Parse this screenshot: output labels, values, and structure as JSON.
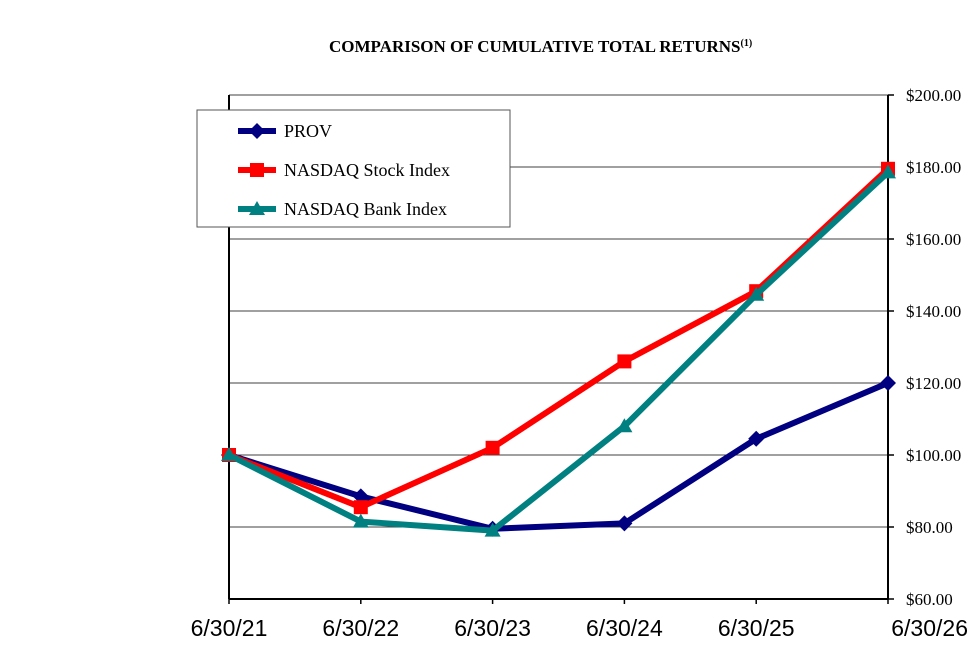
{
  "chart_data": {
    "type": "line",
    "title": "COMPARISON OF CUMULATIVE TOTAL RETURNS",
    "title_superscript": "(1)",
    "categories": [
      "6/30/21",
      "6/30/22",
      "6/30/23",
      "6/30/24",
      "6/30/25",
      "6/30/26"
    ],
    "ylim": [
      60,
      200
    ],
    "y_ticks": [
      60,
      80,
      100,
      120,
      140,
      160,
      180,
      200
    ],
    "y_tick_labels": [
      "$60.00",
      "$80.00",
      "$100.00",
      "$120.00",
      "$140.00",
      "$160.00",
      "$180.00",
      "$200.00"
    ],
    "y_axis_side": "right",
    "grid": "horizontal",
    "legend_position": "top-left",
    "series": [
      {
        "name": "PROV",
        "color": "#000080",
        "marker": "diamond",
        "values": [
          100.0,
          88.5,
          79.5,
          81.0,
          104.5,
          120.0
        ]
      },
      {
        "name": "NASDAQ Stock Index",
        "color": "#ff0000",
        "marker": "square",
        "values": [
          100.0,
          85.5,
          102.0,
          126.0,
          145.5,
          179.5
        ]
      },
      {
        "name": "NASDAQ Bank Index",
        "color": "#008080",
        "marker": "triangle",
        "values": [
          100.0,
          81.5,
          79.0,
          108.0,
          144.5,
          178.5
        ]
      }
    ]
  }
}
